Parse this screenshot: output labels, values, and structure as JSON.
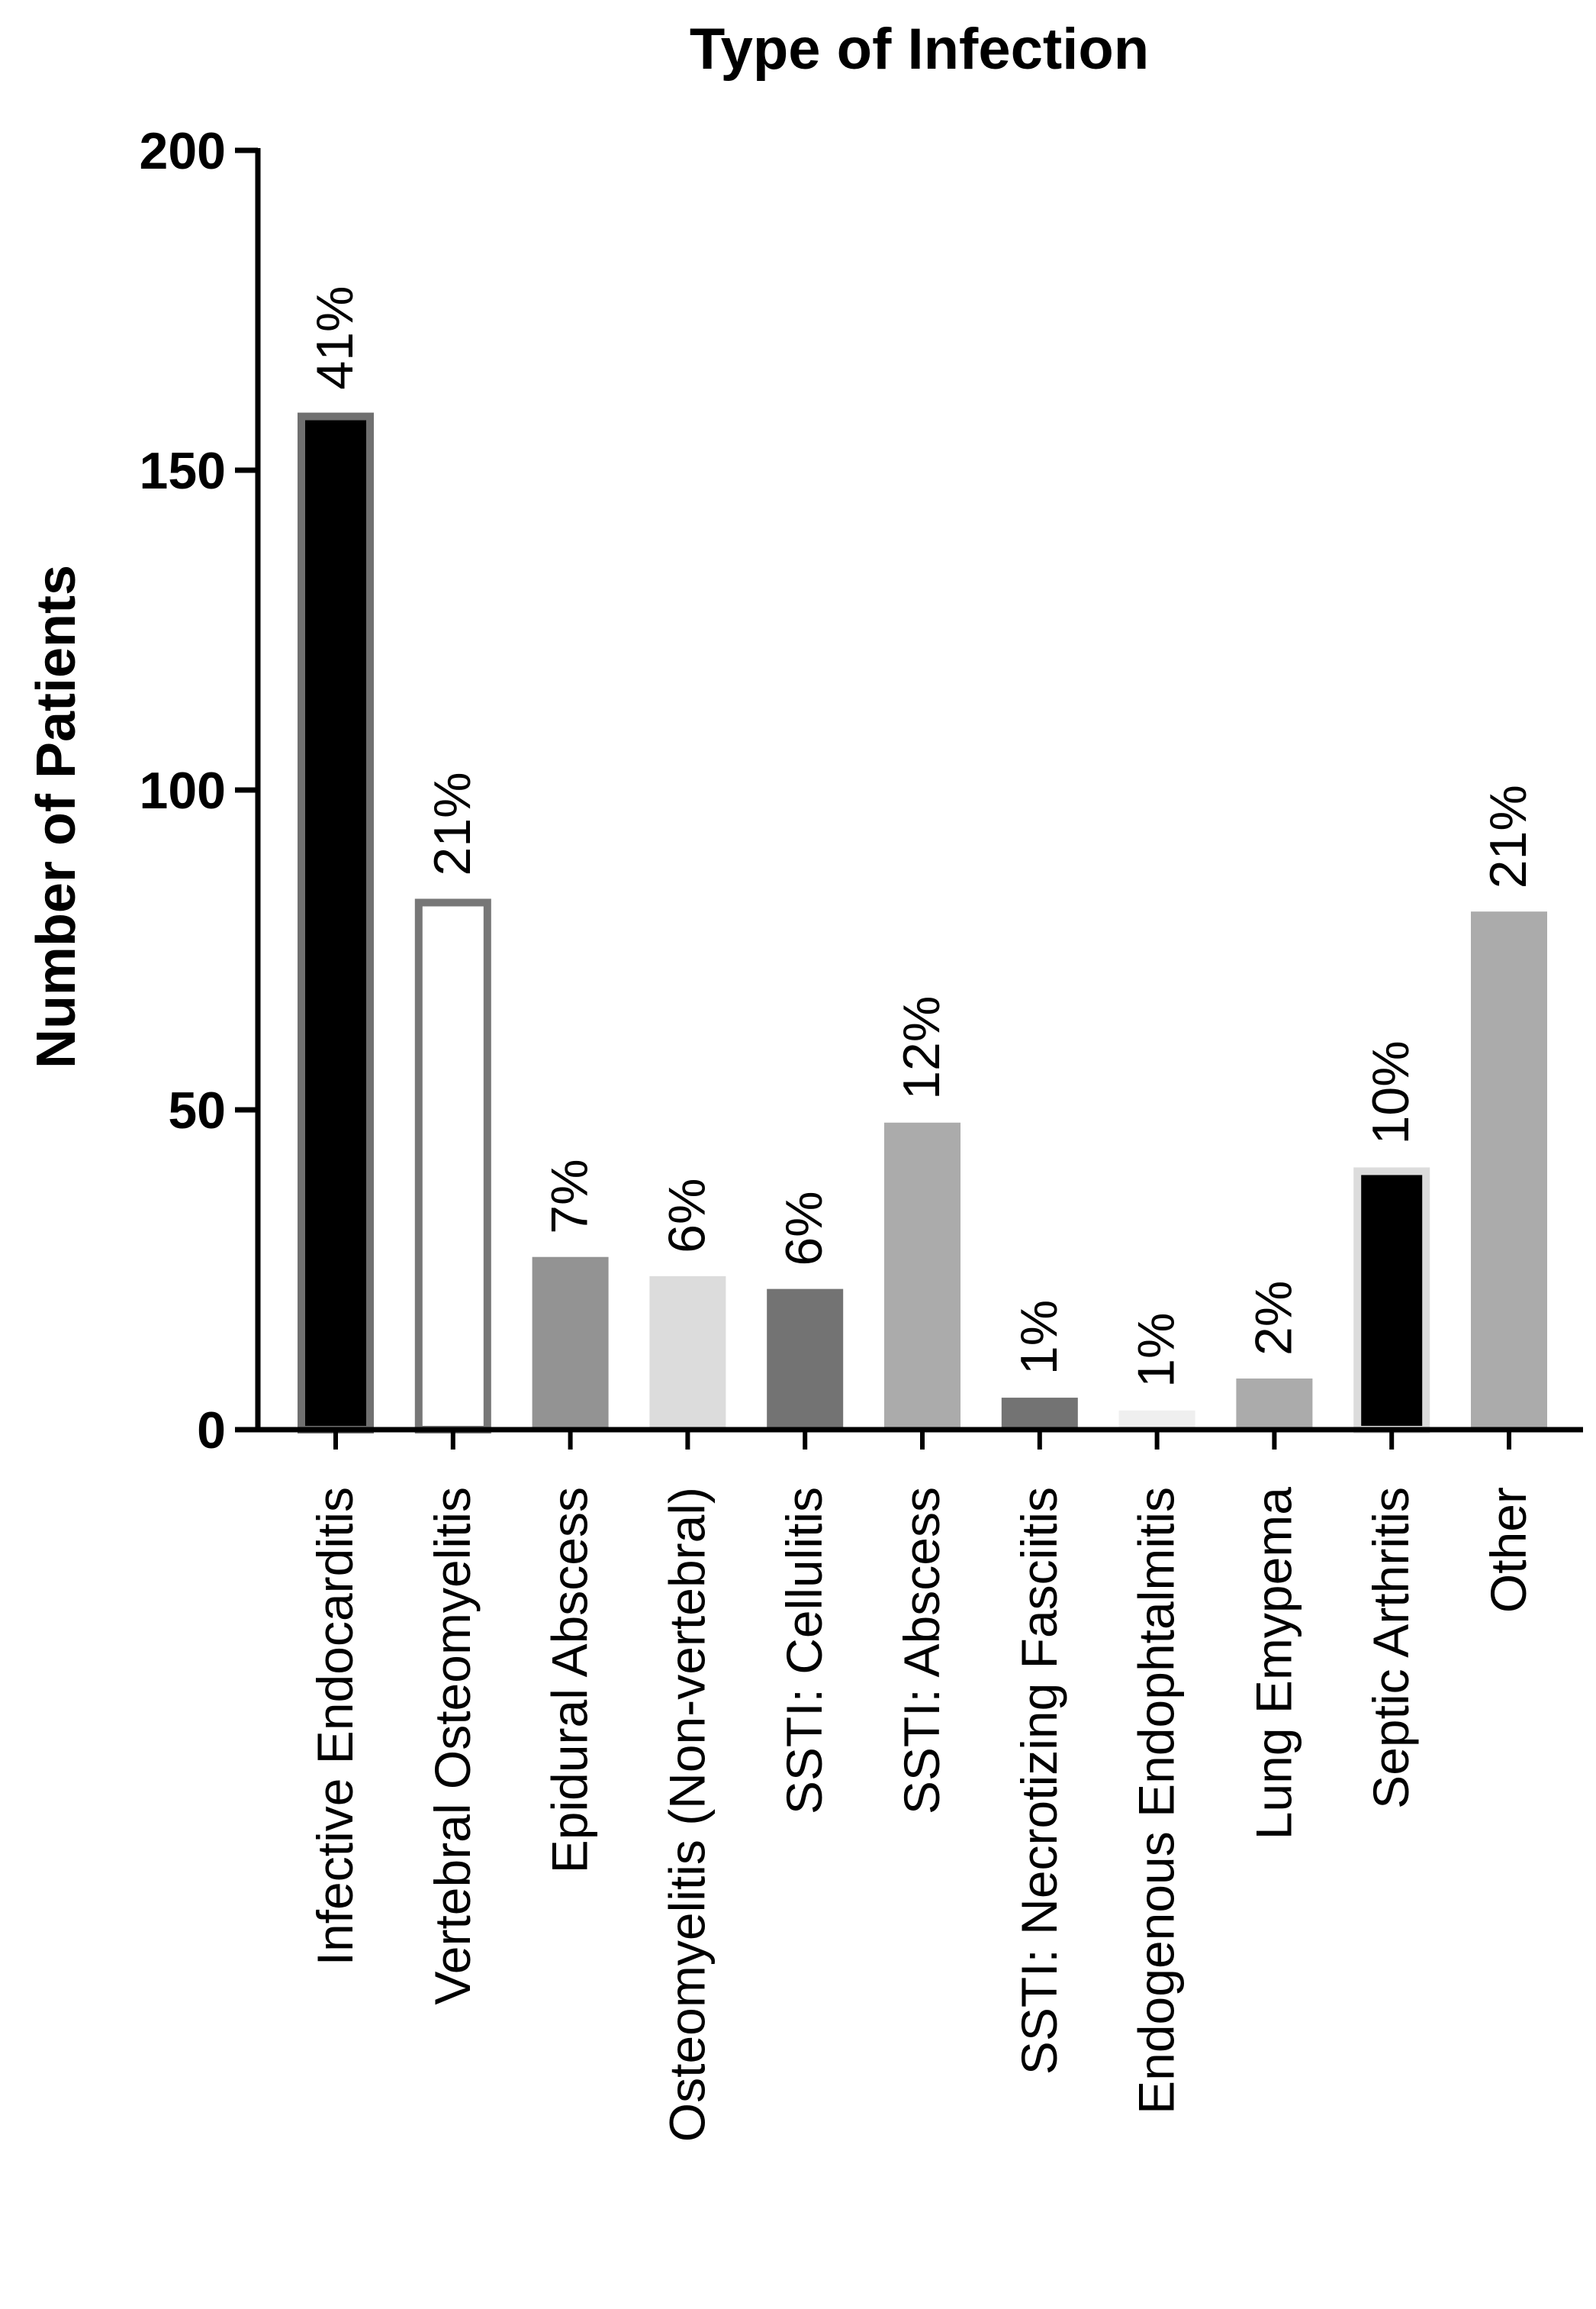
{
  "chart_data": {
    "type": "bar",
    "title": "Type of Infection",
    "xlabel": "",
    "ylabel": "Number of Patients",
    "ylim": [
      0,
      200
    ],
    "yticks": [
      0,
      50,
      100,
      150,
      200
    ],
    "grid": false,
    "legend": "none",
    "categories": [
      "Infective Endocarditis",
      "Vertebral Osteomyelitis",
      "Epidural Abscess",
      "Osteomyelitis (Non-vertebral)",
      "SSTI: Cellulitis",
      "SSTI: Abscess",
      "SSTI: Necrotizing Fasciitis",
      "Endogenous Endophtalmitis",
      "Lung Emypema",
      "Septic Arthritis",
      "Other"
    ],
    "values": [
      159,
      83,
      27,
      24,
      22,
      48,
      5,
      3,
      8,
      41,
      81
    ],
    "data_labels": [
      "41%",
      "21%",
      "7%",
      "6%",
      "6%",
      "12%",
      "1%",
      "1%",
      "2%",
      "10%",
      "21%"
    ],
    "colors": {
      "fill": [
        "#000000",
        "#ffffff",
        "#939393",
        "#dcdcdc",
        "#737373",
        "#ababab",
        "#737373",
        "#efefef",
        "#ababab",
        "#000000",
        "#ababab"
      ],
      "stroke": [
        "#707070",
        "#777777",
        "none",
        "none",
        "none",
        "none",
        "none",
        "none",
        "none",
        "#dcdcdc",
        "none"
      ]
    }
  }
}
